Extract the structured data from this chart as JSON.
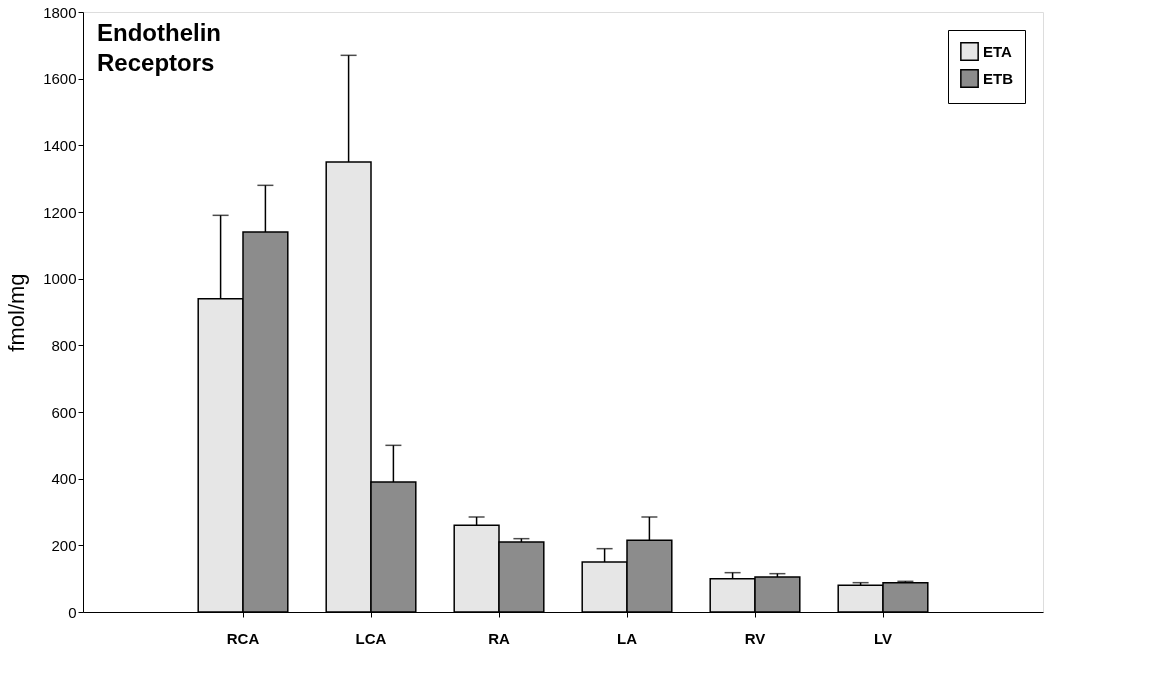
{
  "chart_data": {
    "type": "bar",
    "title": "Endothelin Receptors",
    "ylabel": "fmol/mg",
    "categories": [
      "RCA",
      "LCA",
      "RA",
      "LA",
      "RV",
      "LV"
    ],
    "series": [
      {
        "name": "ETA",
        "color": "#e6e6e6",
        "values": [
          940,
          1350,
          260,
          150,
          100,
          80
        ],
        "errors": [
          [
            940,
            1190
          ],
          [
            1350,
            1670
          ],
          [
            260,
            285
          ],
          [
            150,
            190
          ],
          [
            100,
            118
          ],
          [
            80,
            88
          ]
        ]
      },
      {
        "name": "ETB",
        "color": "#8c8c8c",
        "values": [
          1140,
          390,
          210,
          215,
          105,
          88
        ],
        "errors": [
          [
            1140,
            1280
          ],
          [
            390,
            500
          ],
          [
            210,
            220
          ],
          [
            215,
            285
          ],
          [
            105,
            115
          ],
          [
            88,
            92
          ]
        ]
      }
    ],
    "ylim": [
      0,
      1800
    ],
    "yticks": [
      0,
      200,
      400,
      600,
      800,
      1000,
      1200,
      1400,
      1600,
      1800
    ],
    "grid": false,
    "legend": "top right"
  }
}
